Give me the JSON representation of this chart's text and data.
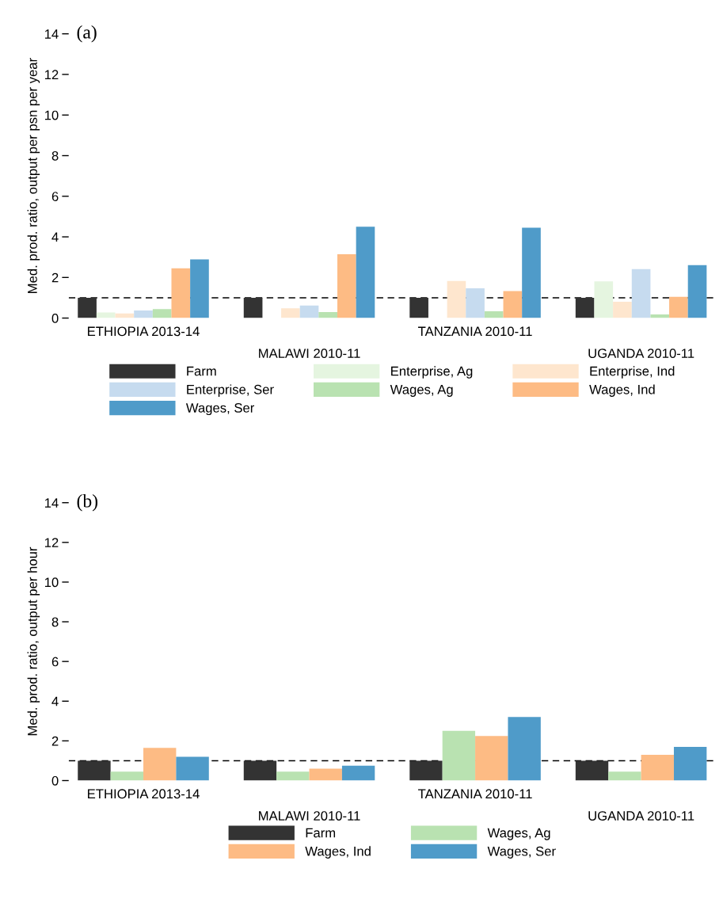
{
  "chart_data": [
    {
      "type": "bar",
      "title": "(a)",
      "ylabel": "Med. prod. ratio, output per psn per year",
      "categories": [
        "ETHIOPIA 2013-14",
        "MALAWI 2010-11",
        "TANZANIA 2010-11",
        "UGANDA 2010-11"
      ],
      "series": [
        {
          "name": "Farm",
          "color": "#333333",
          "values": [
            1.0,
            1.0,
            1.0,
            1.0
          ]
        },
        {
          "name": "Enterprise, Ag",
          "color": "#e5f5e0",
          "values": [
            0.28,
            null,
            null,
            1.81
          ]
        },
        {
          "name": "Enterprise, Ind",
          "color": "#fee6ce",
          "values": [
            0.23,
            0.48,
            1.83,
            0.8
          ]
        },
        {
          "name": "Enterprise, Ser",
          "color": "#c6dbef",
          "values": [
            0.37,
            0.62,
            1.47,
            2.41
          ]
        },
        {
          "name": "Wages, Ag",
          "color": "#b9e2b1",
          "values": [
            0.44,
            0.3,
            0.34,
            0.18
          ]
        },
        {
          "name": "Wages, Ind",
          "color": "#fdbb84",
          "values": [
            2.45,
            3.14,
            1.33,
            1.05
          ]
        },
        {
          "name": "Wages, Ser",
          "color": "#4f9bc9",
          "values": [
            2.89,
            4.5,
            4.45,
            2.61
          ]
        }
      ],
      "ylim": [
        0,
        14
      ],
      "yticks": [
        0,
        2,
        4,
        6,
        8,
        10,
        12,
        14
      ],
      "ref_lines": [
        {
          "axis": "y",
          "value": 1,
          "color": "#000000",
          "line_style": "dashed"
        }
      ],
      "legend": "bottom",
      "grid": false
    },
    {
      "type": "bar",
      "title": "(b)",
      "ylabel": "Med. prod. ratio, output per hour",
      "categories": [
        "ETHIOPIA 2013-14",
        "MALAWI 2010-11",
        "TANZANIA 2010-11",
        "UGANDA 2010-11"
      ],
      "series": [
        {
          "name": "Farm",
          "color": "#333333",
          "values": [
            1.0,
            1.0,
            1.0,
            1.0
          ]
        },
        {
          "name": "Wages, Ag",
          "color": "#b9e2b1",
          "values": [
            0.45,
            0.45,
            2.5,
            0.45
          ]
        },
        {
          "name": "Wages, Ind",
          "color": "#fdbb84",
          "values": [
            1.65,
            0.6,
            2.25,
            1.3
          ]
        },
        {
          "name": "Wages, Ser",
          "color": "#4f9bc9",
          "values": [
            1.2,
            0.75,
            3.2,
            1.7
          ]
        }
      ],
      "ylim": [
        0,
        14
      ],
      "yticks": [
        0,
        2,
        4,
        6,
        8,
        10,
        12,
        14
      ],
      "ref_lines": [
        {
          "axis": "y",
          "value": 1,
          "color": "#000000",
          "line_style": "dashed"
        }
      ],
      "legend": "bottom",
      "grid": false
    }
  ]
}
